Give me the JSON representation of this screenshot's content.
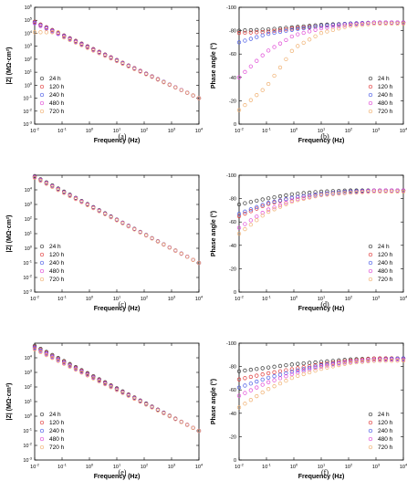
{
  "figure": {
    "legend_labels": [
      "24 h",
      "120 h",
      "240 h",
      "480 h",
      "720 h"
    ],
    "colors": [
      "#333333",
      "#e03c3c",
      "#4a5be6",
      "#e04ad6",
      "#f0b070"
    ]
  },
  "chart_data": [
    {
      "panel": "(a)",
      "type": "scatter",
      "xlabel": "Frequency (Hz)",
      "ylabel": "|Z| (MΩ·cm²)",
      "xscale": "log",
      "yscale": "log",
      "xlim": [
        0.01,
        10000
      ],
      "ylim": [
        0.001,
        1000000
      ],
      "xtick_exponents": [
        -2,
        -1,
        0,
        1,
        2,
        3,
        4
      ],
      "ytick_exponents": [
        -3,
        -2,
        -1,
        0,
        1,
        2,
        3,
        4,
        5,
        6
      ],
      "legend_position": "bottom-left",
      "series": [
        {
          "name": "24 h",
          "color": "#333333",
          "low_freq_value": 200000,
          "slope": -0.98,
          "value_at_1e4": 0.1
        },
        {
          "name": "120 h",
          "color": "#e03c3c",
          "low_freq_value": 120000,
          "slope": -0.98,
          "value_at_1e4": 0.1
        },
        {
          "name": "240 h",
          "color": "#4a5be6",
          "low_freq_value": 80000,
          "slope": -0.97,
          "value_at_1e4": 0.1
        },
        {
          "name": "480 h",
          "color": "#e04ad6",
          "low_freq_value": 60000,
          "slope": -0.96,
          "value_at_1e4": 0.1
        },
        {
          "name": "720 h",
          "color": "#f0b070",
          "low_freq_value": 12000,
          "slope": -0.95,
          "value_at_1e4": 0.1,
          "plateau_below_hz": 0.1
        }
      ]
    },
    {
      "panel": "(b)",
      "type": "scatter",
      "xlabel": "Frequency (Hz)",
      "ylabel": "Phase angle (°)",
      "xscale": "log",
      "xlim": [
        0.01,
        10000
      ],
      "ylim": [
        0,
        -100
      ],
      "xtick_exponents": [
        -2,
        -1,
        0,
        1,
        2,
        3,
        4
      ],
      "yticks": [
        0,
        -20,
        -40,
        -60,
        -80,
        -100
      ],
      "legend_position": "bottom-right",
      "series": [
        {
          "name": "24 h",
          "color": "#333333",
          "points": [
            [
              0.01,
              -80
            ],
            [
              0.1,
              -81
            ],
            [
              1,
              -83
            ],
            [
              10,
              -85
            ],
            [
              100,
              -86
            ],
            [
              1000,
              -87
            ],
            [
              10000,
              -87
            ]
          ]
        },
        {
          "name": "120 h",
          "color": "#e03c3c",
          "points": [
            [
              0.01,
              -78
            ],
            [
              0.1,
              -79
            ],
            [
              1,
              -82
            ],
            [
              10,
              -84
            ],
            [
              100,
              -86
            ],
            [
              1000,
              -87
            ],
            [
              10000,
              -87
            ]
          ]
        },
        {
          "name": "240 h",
          "color": "#4a5be6",
          "points": [
            [
              0.01,
              -70
            ],
            [
              0.1,
              -77
            ],
            [
              1,
              -81
            ],
            [
              10,
              -84
            ],
            [
              100,
              -86
            ],
            [
              1000,
              -87
            ],
            [
              10000,
              -87
            ]
          ]
        },
        {
          "name": "480 h",
          "color": "#e04ad6",
          "points": [
            [
              0.01,
              -40
            ],
            [
              0.1,
              -62
            ],
            [
              1,
              -76
            ],
            [
              10,
              -82
            ],
            [
              100,
              -85
            ],
            [
              1000,
              -87
            ],
            [
              10000,
              -87
            ]
          ]
        },
        {
          "name": "720 h",
          "color": "#f0b070",
          "points": [
            [
              0.01,
              -12
            ],
            [
              0.1,
              -32
            ],
            [
              1,
              -65
            ],
            [
              10,
              -78
            ],
            [
              100,
              -84
            ],
            [
              1000,
              -86
            ],
            [
              10000,
              -86
            ]
          ]
        }
      ]
    },
    {
      "panel": "(c)",
      "type": "scatter",
      "xlabel": "Frequency (Hz)",
      "ylabel": "|Z| (MΩ·cm²)",
      "xscale": "log",
      "yscale": "log",
      "xlim": [
        0.01,
        10000
      ],
      "ylim": [
        0.001,
        100000
      ],
      "xtick_exponents": [
        -2,
        -1,
        0,
        1,
        2,
        3,
        4
      ],
      "ytick_exponents": [
        -3,
        -2,
        -1,
        0,
        1,
        2,
        3,
        4
      ],
      "legend_position": "bottom-left",
      "series": [
        {
          "name": "24 h",
          "color": "#333333",
          "low_freq_value": 60000,
          "slope": -0.99,
          "value_at_1e4": 0.1
        },
        {
          "name": "120 h",
          "color": "#e03c3c",
          "low_freq_value": 40000,
          "slope": -0.98,
          "value_at_1e4": 0.1
        },
        {
          "name": "240 h",
          "color": "#4a5be6",
          "low_freq_value": 35000,
          "slope": -0.98,
          "value_at_1e4": 0.1
        },
        {
          "name": "480 h",
          "color": "#e04ad6",
          "low_freq_value": 30000,
          "slope": -0.98,
          "value_at_1e4": 0.1
        },
        {
          "name": "720 h",
          "color": "#f0b070",
          "low_freq_value": 25000,
          "slope": -0.97,
          "value_at_1e4": 0.1
        }
      ]
    },
    {
      "panel": "(d)",
      "type": "scatter",
      "xlabel": "Frequency (Hz)",
      "ylabel": "Phase angle (°)",
      "xscale": "log",
      "xlim": [
        0.01,
        10000
      ],
      "ylim": [
        0,
        -100
      ],
      "xtick_exponents": [
        -2,
        -1,
        0,
        1,
        2,
        3,
        4
      ],
      "yticks": [
        0,
        -20,
        -40,
        -60,
        -80,
        -100
      ],
      "legend_position": "bottom-right",
      "series": [
        {
          "name": "24 h",
          "color": "#333333",
          "points": [
            [
              0.01,
              -75
            ],
            [
              0.1,
              -80
            ],
            [
              1,
              -84
            ],
            [
              10,
              -86
            ],
            [
              100,
              -87
            ],
            [
              1000,
              -87
            ],
            [
              10000,
              -87
            ]
          ]
        },
        {
          "name": "120 h",
          "color": "#e03c3c",
          "points": [
            [
              0.01,
              -65
            ],
            [
              0.1,
              -75
            ],
            [
              1,
              -81
            ],
            [
              10,
              -84
            ],
            [
              100,
              -86
            ],
            [
              1000,
              -87
            ],
            [
              10000,
              -87
            ]
          ]
        },
        {
          "name": "240 h",
          "color": "#4a5be6",
          "points": [
            [
              0.01,
              -67
            ],
            [
              0.1,
              -76
            ],
            [
              1,
              -81
            ],
            [
              10,
              -84
            ],
            [
              100,
              -86
            ],
            [
              1000,
              -87
            ],
            [
              10000,
              -87
            ]
          ]
        },
        {
          "name": "480 h",
          "color": "#e04ad6",
          "points": [
            [
              0.01,
              -55
            ],
            [
              0.1,
              -70
            ],
            [
              1,
              -79
            ],
            [
              10,
              -83
            ],
            [
              100,
              -85
            ],
            [
              1000,
              -87
            ],
            [
              10000,
              -87
            ]
          ]
        },
        {
          "name": "720 h",
          "color": "#f0b070",
          "points": [
            [
              0.01,
              -50
            ],
            [
              0.1,
              -68
            ],
            [
              1,
              -78
            ],
            [
              10,
              -83
            ],
            [
              100,
              -85
            ],
            [
              1000,
              -86
            ],
            [
              10000,
              -86
            ]
          ]
        }
      ]
    },
    {
      "panel": "(e)",
      "type": "scatter",
      "xlabel": "Frequency (Hz)",
      "ylabel": "|Z| (MΩ·cm²)",
      "xscale": "log",
      "yscale": "log",
      "xlim": [
        0.01,
        10000
      ],
      "ylim": [
        0.001,
        100000
      ],
      "xtick_exponents": [
        -2,
        -1,
        0,
        1,
        2,
        3,
        4
      ],
      "ytick_exponents": [
        -3,
        -2,
        -1,
        0,
        1,
        2,
        3,
        4
      ],
      "legend_position": "bottom-left",
      "series": [
        {
          "name": "24 h",
          "color": "#333333",
          "low_freq_value": 30000,
          "slope": -0.97,
          "value_at_1e4": 0.1
        },
        {
          "name": "120 h",
          "color": "#e03c3c",
          "low_freq_value": 20000,
          "slope": -0.96,
          "value_at_1e4": 0.1
        },
        {
          "name": "240 h",
          "color": "#4a5be6",
          "low_freq_value": 15000,
          "slope": -0.95,
          "value_at_1e4": 0.1
        },
        {
          "name": "480 h",
          "color": "#e04ad6",
          "low_freq_value": 12000,
          "slope": -0.94,
          "value_at_1e4": 0.1
        },
        {
          "name": "720 h",
          "color": "#f0b070",
          "low_freq_value": 8000,
          "slope": -0.93,
          "value_at_1e4": 0.1
        }
      ]
    },
    {
      "panel": "(f)",
      "type": "scatter",
      "xlabel": "Frequency (Hz)",
      "ylabel": "Phase angle (°)",
      "xscale": "log",
      "xlim": [
        0.01,
        10000
      ],
      "ylim": [
        0,
        -100
      ],
      "xtick_exponents": [
        -2,
        -1,
        0,
        1,
        2,
        3,
        4
      ],
      "yticks": [
        0,
        -20,
        -40,
        -60,
        -80,
        -100
      ],
      "legend_position": "bottom-right",
      "series": [
        {
          "name": "24 h",
          "color": "#333333",
          "points": [
            [
              0.01,
              -76
            ],
            [
              0.1,
              -79
            ],
            [
              1,
              -82
            ],
            [
              10,
              -84
            ],
            [
              100,
              -86
            ],
            [
              1000,
              -87
            ],
            [
              10000,
              -87
            ]
          ]
        },
        {
          "name": "120 h",
          "color": "#e03c3c",
          "points": [
            [
              0.01,
              -69
            ],
            [
              0.1,
              -74
            ],
            [
              1,
              -78
            ],
            [
              10,
              -82
            ],
            [
              100,
              -85
            ],
            [
              1000,
              -87
            ],
            [
              10000,
              -87
            ]
          ]
        },
        {
          "name": "240 h",
          "color": "#4a5be6",
          "points": [
            [
              0.01,
              -62
            ],
            [
              0.1,
              -70
            ],
            [
              1,
              -76
            ],
            [
              10,
              -81
            ],
            [
              100,
              -84
            ],
            [
              1000,
              -86
            ],
            [
              10000,
              -87
            ]
          ]
        },
        {
          "name": "480 h",
          "color": "#e04ad6",
          "points": [
            [
              0.01,
              -55
            ],
            [
              0.1,
              -66
            ],
            [
              1,
              -74
            ],
            [
              10,
              -80
            ],
            [
              100,
              -84
            ],
            [
              1000,
              -86
            ],
            [
              10000,
              -86
            ]
          ]
        },
        {
          "name": "720 h",
          "color": "#f0b070",
          "points": [
            [
              0.01,
              -45
            ],
            [
              0.1,
              -60
            ],
            [
              1,
              -71
            ],
            [
              10,
              -78
            ],
            [
              100,
              -83
            ],
            [
              1000,
              -85
            ],
            [
              10000,
              -85
            ]
          ]
        }
      ]
    }
  ]
}
